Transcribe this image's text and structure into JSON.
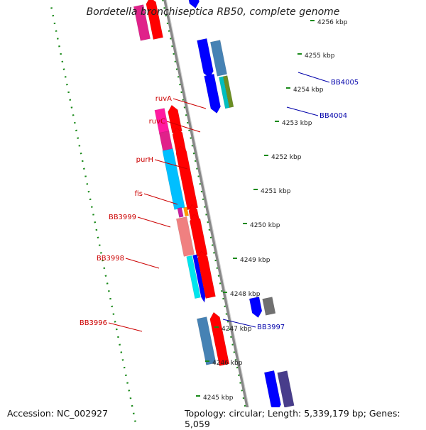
{
  "title": "Bordetella bronchiseptica RB50, complete genome",
  "footer": {
    "accession": "Accession: NC_002927",
    "stats": "Topology: circular; Length: 5,339,179 bp; Genes: 5,059"
  },
  "ticks": [
    {
      "label": "4256 kbp",
      "kbp": 4256
    },
    {
      "label": "4255 kbp",
      "kbp": 4255
    },
    {
      "label": "4254 kbp",
      "kbp": 4254
    },
    {
      "label": "4253 kbp",
      "kbp": 4253
    },
    {
      "label": "4252 kbp",
      "kbp": 4252
    },
    {
      "label": "4251 kbp",
      "kbp": 4251
    },
    {
      "label": "4250 kbp",
      "kbp": 4250
    },
    {
      "label": "4249 kbp",
      "kbp": 4249
    },
    {
      "label": "4248 kbp",
      "kbp": 4248
    },
    {
      "label": "4247 kbp",
      "kbp": 4247
    },
    {
      "label": "4246 kbp",
      "kbp": 4246
    },
    {
      "label": "4245 kbp",
      "kbp": 4245
    }
  ],
  "gene_labels_left": [
    {
      "name": "ruvA",
      "color": "#cc0000"
    },
    {
      "name": "ruvC",
      "color": "#cc0000"
    },
    {
      "name": "purH",
      "color": "#cc0000"
    },
    {
      "name": "fis",
      "color": "#cc0000"
    },
    {
      "name": "BB3999",
      "color": "#cc0000"
    },
    {
      "name": "BB3998",
      "color": "#cc0000"
    },
    {
      "name": "BB3996",
      "color": "#cc0000"
    }
  ],
  "gene_labels_right": [
    {
      "name": "BB4005",
      "color": "#0000aa"
    },
    {
      "name": "BB4004",
      "color": "#0000aa"
    },
    {
      "name": "BB3997",
      "color": "#0000aa"
    }
  ],
  "colors": {
    "forward_cds": "#ff0000",
    "reverse_cds": "#0000ff",
    "dotted_ring": "#1a8a1a",
    "backbone": "#888888"
  }
}
